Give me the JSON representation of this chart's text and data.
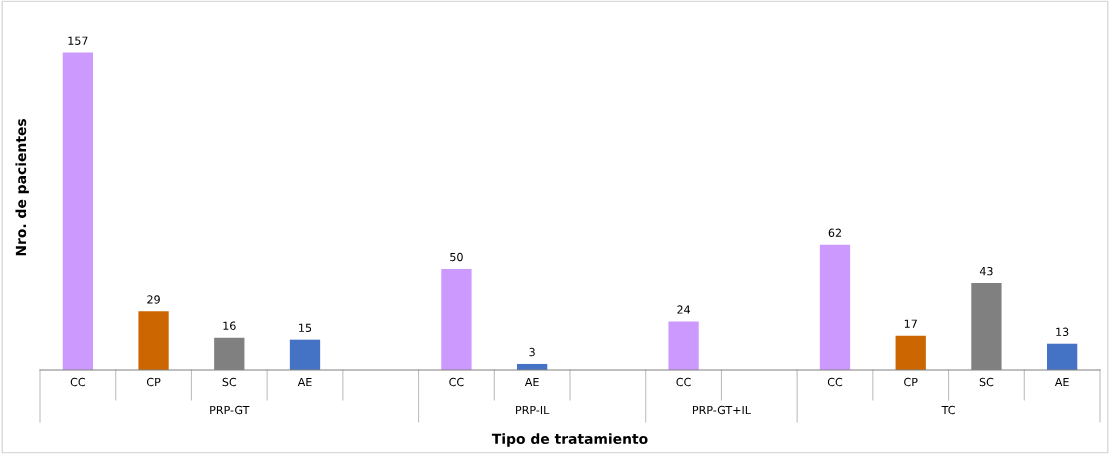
{
  "chart_data": {
    "type": "bar",
    "xlabel": "Tipo de tratamiento",
    "ylabel": "Nro. de pacientes",
    "categories": [
      "CC",
      "CP",
      "SC",
      "AE",
      null,
      "CC",
      "AE",
      null,
      "CC",
      null,
      "CC",
      "CP",
      "SC",
      "AE"
    ],
    "values": [
      157,
      29,
      16,
      15,
      null,
      50,
      3,
      null,
      24,
      null,
      62,
      17,
      43,
      13
    ],
    "colors": [
      "#cc99ff",
      "#cc6600",
      "#808080",
      "#4472c4",
      null,
      "#cc99ff",
      "#4472c4",
      null,
      "#cc99ff",
      null,
      "#cc99ff",
      "#cc6600",
      "#808080",
      "#4472c4"
    ],
    "annotations": [
      "PRP-GT",
      "PRP-IL",
      "PRP-GT+IL",
      "TC"
    ],
    "data_labels": true
  }
}
